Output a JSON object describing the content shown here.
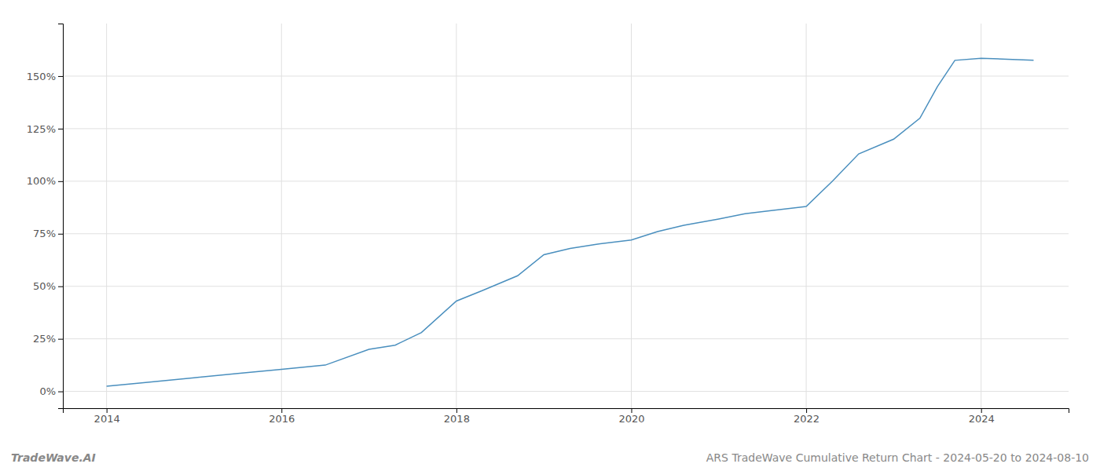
{
  "chart_data": {
    "type": "line",
    "title": "ARS TradeWave Cumulative Return Chart - 2024-05-20 to 2024-08-10",
    "annotations": [
      "TradeWave.AI"
    ],
    "color": "#4a8fbe",
    "x": [
      2014.0,
      2014.4,
      2015.0,
      2015.5,
      2016.0,
      2016.5,
      2017.0,
      2017.3,
      2017.6,
      2018.0,
      2018.3,
      2018.7,
      2019.0,
      2019.3,
      2019.6,
      2020.0,
      2020.3,
      2020.6,
      2021.0,
      2021.3,
      2021.6,
      2022.0,
      2022.3,
      2022.6,
      2023.0,
      2023.3,
      2023.5,
      2023.7,
      2024.0,
      2024.3,
      2024.6
    ],
    "values": [
      2.5,
      4.0,
      6.5,
      8.5,
      10.5,
      12.5,
      20.0,
      22.0,
      28.0,
      43.0,
      48.0,
      55.0,
      65.0,
      68.0,
      70.0,
      72.0,
      76.0,
      79.0,
      82.0,
      84.5,
      86.0,
      88.0,
      100.0,
      113.0,
      120.0,
      130.0,
      145.0,
      157.5,
      158.5,
      158.0,
      157.5
    ],
    "xlim": [
      2013.5,
      2025.0
    ],
    "ylim": [
      -8,
      175
    ],
    "xticks": [
      2014,
      2016,
      2018,
      2020,
      2022,
      2024
    ],
    "yticks": [
      {
        "value": 0,
        "label": "0%"
      },
      {
        "value": 25,
        "label": "25%"
      },
      {
        "value": 50,
        "label": "50%"
      },
      {
        "value": 75,
        "label": "75%"
      },
      {
        "value": 100,
        "label": "100%"
      },
      {
        "value": 125,
        "label": "125%"
      },
      {
        "value": 150,
        "label": "150%"
      }
    ],
    "grid": true
  }
}
